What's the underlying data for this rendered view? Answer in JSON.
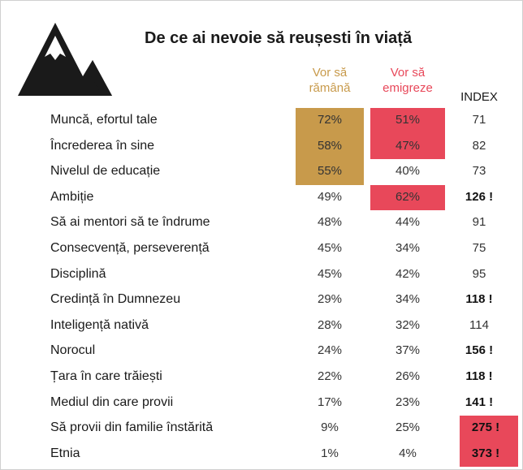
{
  "chart_data": {
    "type": "table",
    "title": "De ce ai nevoie să reușesti în viață",
    "columns": [
      "Vor să rămână",
      "Vor să emigreze",
      "INDEX"
    ],
    "rows": [
      {
        "label": "Muncă, efortul tale",
        "stay": "72%",
        "emigrate": "51%",
        "index": "71",
        "stay_v": 72,
        "emigrate_v": 51,
        "index_v": 71,
        "hl_stay": true,
        "hl_emig": true,
        "hl_index": false,
        "bold": false
      },
      {
        "label": "Încrederea în sine",
        "stay": "58%",
        "emigrate": "47%",
        "index": "82",
        "stay_v": 58,
        "emigrate_v": 47,
        "index_v": 82,
        "hl_stay": true,
        "hl_emig": true,
        "hl_index": false,
        "bold": false
      },
      {
        "label": "Nivelul de educație",
        "stay": "55%",
        "emigrate": "40%",
        "index": "73",
        "stay_v": 55,
        "emigrate_v": 40,
        "index_v": 73,
        "hl_stay": true,
        "hl_emig": false,
        "hl_index": false,
        "bold": false
      },
      {
        "label": "Ambiție",
        "stay": "49%",
        "emigrate": "62%",
        "index": "126 !",
        "stay_v": 49,
        "emigrate_v": 62,
        "index_v": 126,
        "hl_stay": false,
        "hl_emig": true,
        "hl_index": false,
        "bold": true
      },
      {
        "label": "Să ai mentori să te îndrume",
        "stay": "48%",
        "emigrate": "44%",
        "index": "91",
        "stay_v": 48,
        "emigrate_v": 44,
        "index_v": 91,
        "hl_stay": false,
        "hl_emig": false,
        "hl_index": false,
        "bold": false
      },
      {
        "label": "Consecvență, perseverență",
        "stay": "45%",
        "emigrate": "34%",
        "index": "75",
        "stay_v": 45,
        "emigrate_v": 34,
        "index_v": 75,
        "hl_stay": false,
        "hl_emig": false,
        "hl_index": false,
        "bold": false
      },
      {
        "label": "Disciplină",
        "stay": "45%",
        "emigrate": "42%",
        "index": "95",
        "stay_v": 45,
        "emigrate_v": 42,
        "index_v": 95,
        "hl_stay": false,
        "hl_emig": false,
        "hl_index": false,
        "bold": false
      },
      {
        "label": "Credință în Dumnezeu",
        "stay": "29%",
        "emigrate": "34%",
        "index": "118 !",
        "stay_v": 29,
        "emigrate_v": 34,
        "index_v": 118,
        "hl_stay": false,
        "hl_emig": false,
        "hl_index": false,
        "bold": true
      },
      {
        "label": "Inteligență nativă",
        "stay": "28%",
        "emigrate": "32%",
        "index": "114",
        "stay_v": 28,
        "emigrate_v": 32,
        "index_v": 114,
        "hl_stay": false,
        "hl_emig": false,
        "hl_index": false,
        "bold": false
      },
      {
        "label": "Norocul",
        "stay": "24%",
        "emigrate": "37%",
        "index": "156 !",
        "stay_v": 24,
        "emigrate_v": 37,
        "index_v": 156,
        "hl_stay": false,
        "hl_emig": false,
        "hl_index": false,
        "bold": true
      },
      {
        "label": "Țara în care trăiești",
        "stay": "22%",
        "emigrate": "26%",
        "index": "118 !",
        "stay_v": 22,
        "emigrate_v": 26,
        "index_v": 118,
        "hl_stay": false,
        "hl_emig": false,
        "hl_index": false,
        "bold": true
      },
      {
        "label": "Mediul din care provii",
        "stay": "17%",
        "emigrate": "23%",
        "index": "141 !",
        "stay_v": 17,
        "emigrate_v": 23,
        "index_v": 141,
        "hl_stay": false,
        "hl_emig": false,
        "hl_index": false,
        "bold": true
      },
      {
        "label": "Să provii din familie înstărită",
        "stay": "9%",
        "emigrate": "25%",
        "index": "275 !",
        "stay_v": 9,
        "emigrate_v": 25,
        "index_v": 275,
        "hl_stay": false,
        "hl_emig": false,
        "hl_index": true,
        "bold": true
      },
      {
        "label": "Etnia",
        "stay": "1%",
        "emigrate": "4%",
        "index": "373 !",
        "stay_v": 1,
        "emigrate_v": 4,
        "index_v": 373,
        "hl_stay": false,
        "hl_emig": false,
        "hl_index": true,
        "bold": true
      }
    ]
  },
  "header": {
    "title": "De ce ai nevoie să reușesti în viață",
    "col_stay_line1": "Vor să",
    "col_stay_line2": "rămână",
    "col_emig_line1": "Vor să",
    "col_emig_line2": "emigreze",
    "col_index": "INDEX"
  },
  "colors": {
    "stay": "#c89a4b",
    "emigrate": "#e8485a",
    "logo": "#1a1a1a"
  },
  "logo": {
    "icon": "mountain-icon"
  }
}
